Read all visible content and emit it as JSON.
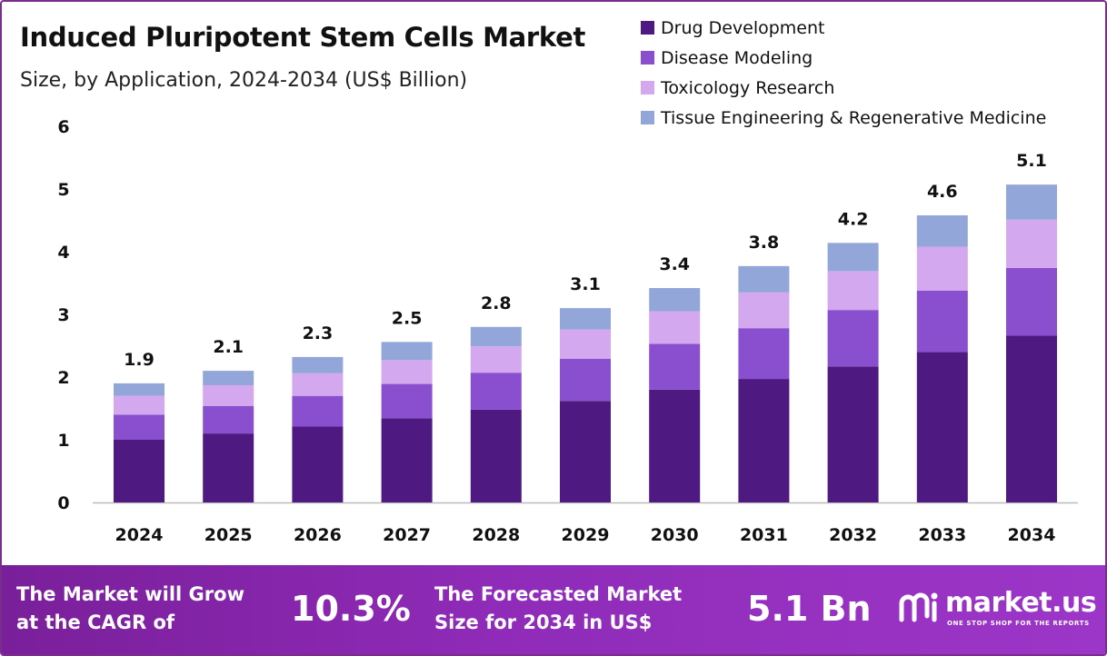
{
  "header": {
    "title": "Induced Pluripotent Stem Cells Market",
    "subtitle": "Size, by Application, 2024-2034 (US$ Billion)"
  },
  "colors": {
    "drug_development": "#4e1a82",
    "disease_modeling": "#8a4fcf",
    "toxicology_research": "#d3a8ef",
    "tissue_engineering": "#92a6da",
    "axis_line": "#bbbbbb",
    "frame": "#7b2d8e"
  },
  "chart_data": {
    "type": "bar",
    "stacked": true,
    "title": "Induced Pluripotent Stem Cells Market",
    "subtitle": "Size, by Application, 2024-2034 (US$ Billion)",
    "categories": [
      "2024",
      "2025",
      "2026",
      "2027",
      "2028",
      "2029",
      "2030",
      "2031",
      "2032",
      "2033",
      "2034"
    ],
    "series": [
      {
        "name": "Drug Development",
        "values": [
          1.0,
          1.1,
          1.21,
          1.34,
          1.48,
          1.62,
          1.8,
          1.97,
          2.17,
          2.4,
          2.66
        ]
      },
      {
        "name": "Disease Modeling",
        "values": [
          0.4,
          0.44,
          0.49,
          0.55,
          0.59,
          0.67,
          0.73,
          0.81,
          0.9,
          0.98,
          1.08
        ]
      },
      {
        "name": "Toxicology Research",
        "values": [
          0.3,
          0.33,
          0.36,
          0.38,
          0.42,
          0.47,
          0.52,
          0.57,
          0.62,
          0.7,
          0.77
        ]
      },
      {
        "name": "Tissue Engineering & Regenerative Medicine",
        "values": [
          0.2,
          0.23,
          0.26,
          0.29,
          0.31,
          0.34,
          0.37,
          0.42,
          0.45,
          0.5,
          0.56
        ]
      }
    ],
    "totals": [
      "1.9",
      "2.1",
      "2.3",
      "2.5",
      "2.8",
      "3.1",
      "3.4",
      "3.8",
      "4.2",
      "4.6",
      "5.1"
    ],
    "y_ticks": [
      "0",
      "1",
      "2",
      "3",
      "4",
      "5",
      "6"
    ],
    "ylim": [
      0,
      6
    ],
    "xlabel": "",
    "ylabel": "",
    "grid": false,
    "legend_position": "top-right"
  },
  "footer": {
    "cagr_label_line1": "The Market will Grow",
    "cagr_label_line2": "at the CAGR of",
    "cagr_value": "10.3%",
    "forecast_label_line1": "The Forecasted Market",
    "forecast_label_line2": "Size for 2034 in US$",
    "forecast_value": "5.1 Bn",
    "brand_name": "market.us",
    "brand_tagline": "ONE STOP SHOP FOR THE REPORTS"
  }
}
